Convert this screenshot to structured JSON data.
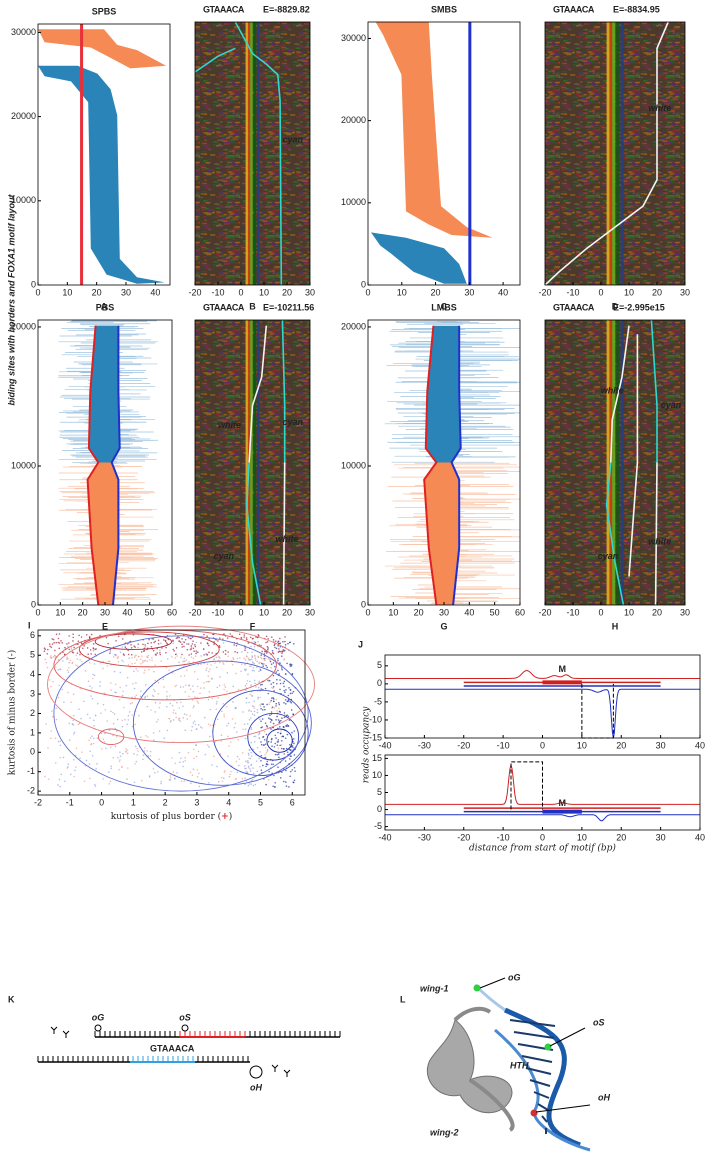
{
  "ylabel_main": "biding sites with borders and FOXA1 motif layout",
  "panels": [
    {
      "label": "A",
      "title": "SPBS",
      "xlim": [
        0,
        45
      ],
      "ylim": [
        0,
        31000
      ],
      "xticks": [
        0,
        10,
        20,
        30,
        40
      ],
      "yticks": [
        0,
        10000,
        20000,
        30000
      ]
    },
    {
      "label": "B",
      "logo": "GTAAACA",
      "energy": "E=-8829.82",
      "xlim": [
        -20,
        30
      ],
      "xticks": [
        -20,
        -10,
        0,
        10,
        20,
        30
      ],
      "annotations": [
        "cyan"
      ]
    },
    {
      "label": "C",
      "title": "SMBS",
      "xlim": [
        0,
        45
      ],
      "ylim": [
        0,
        32000
      ],
      "xticks": [
        0,
        10,
        20,
        30,
        40
      ],
      "yticks": [
        0,
        10000,
        20000,
        30000
      ]
    },
    {
      "label": "D",
      "logo": "GTAAACA",
      "energy": "E=-8834.95",
      "xlim": [
        -20,
        30
      ],
      "xticks": [
        -20,
        -10,
        0,
        10,
        20,
        30
      ],
      "annotations": [
        "white"
      ]
    },
    {
      "label": "E",
      "title": "PBS",
      "xlim": [
        0,
        60
      ],
      "ylim": [
        0,
        20500
      ],
      "xticks": [
        0,
        10,
        20,
        30,
        40,
        50,
        60
      ],
      "yticks": [
        0,
        10000,
        20000
      ]
    },
    {
      "label": "F",
      "logo": "GTAAACA",
      "energy": "E=-10211.56",
      "xlim": [
        -20,
        30
      ],
      "xticks": [
        -20,
        -10,
        0,
        10,
        20,
        30
      ],
      "annotations": [
        "white",
        "cyan",
        "cyan",
        "white"
      ]
    },
    {
      "label": "G",
      "title": "LMBS",
      "xlim": [
        0,
        60
      ],
      "ylim": [
        0,
        20500
      ],
      "xticks": [
        0,
        10,
        20,
        30,
        40,
        50,
        60
      ],
      "yticks": [
        0,
        10000,
        20000
      ]
    },
    {
      "label": "H",
      "logo": "GTAAACA",
      "energy": "E=-2.995e15",
      "xlim": [
        -20,
        30
      ],
      "xticks": [
        -20,
        -10,
        0,
        10,
        20,
        30
      ],
      "annotations": [
        "white",
        "cyan",
        "cyan",
        "white"
      ]
    }
  ],
  "scatter": {
    "label": "I",
    "xlabel_parts": [
      "kurtosis of plus border (",
      "+",
      ")"
    ],
    "ylabel": "kurtosis of minus border (-)",
    "xlim": [
      -2,
      6.4
    ],
    "ylim": [
      -2.2,
      6.3
    ],
    "xticks": [
      -2,
      -1,
      0,
      1,
      2,
      3,
      4,
      5,
      6
    ],
    "yticks": [
      -2,
      -1,
      0,
      1,
      2,
      3,
      4,
      5,
      6
    ]
  },
  "profile": {
    "label": "J",
    "ylabel": "reads occupancy",
    "xlabel": "distance from start of motif (bp)",
    "xlim": [
      -40,
      40
    ],
    "xticks": [
      -40,
      -30,
      -20,
      -10,
      0,
      10,
      20,
      30,
      40
    ],
    "top": {
      "ylim": [
        -15,
        8
      ],
      "yticks": [
        5,
        0,
        -5,
        -10,
        -15
      ],
      "marker": "M"
    },
    "bottom": {
      "ylim": [
        -6,
        16
      ],
      "yticks": [
        15,
        10,
        5,
        0,
        -5
      ],
      "marker": "M"
    }
  },
  "schematic": {
    "label": "K",
    "oG": "oG",
    "oS": "oS",
    "oH": "oH",
    "logo": "GTAAACA"
  },
  "structure": {
    "label": "L",
    "labels": [
      "wing-1",
      "oG",
      "oS",
      "HTH",
      "oH",
      "wing-2"
    ]
  }
}
